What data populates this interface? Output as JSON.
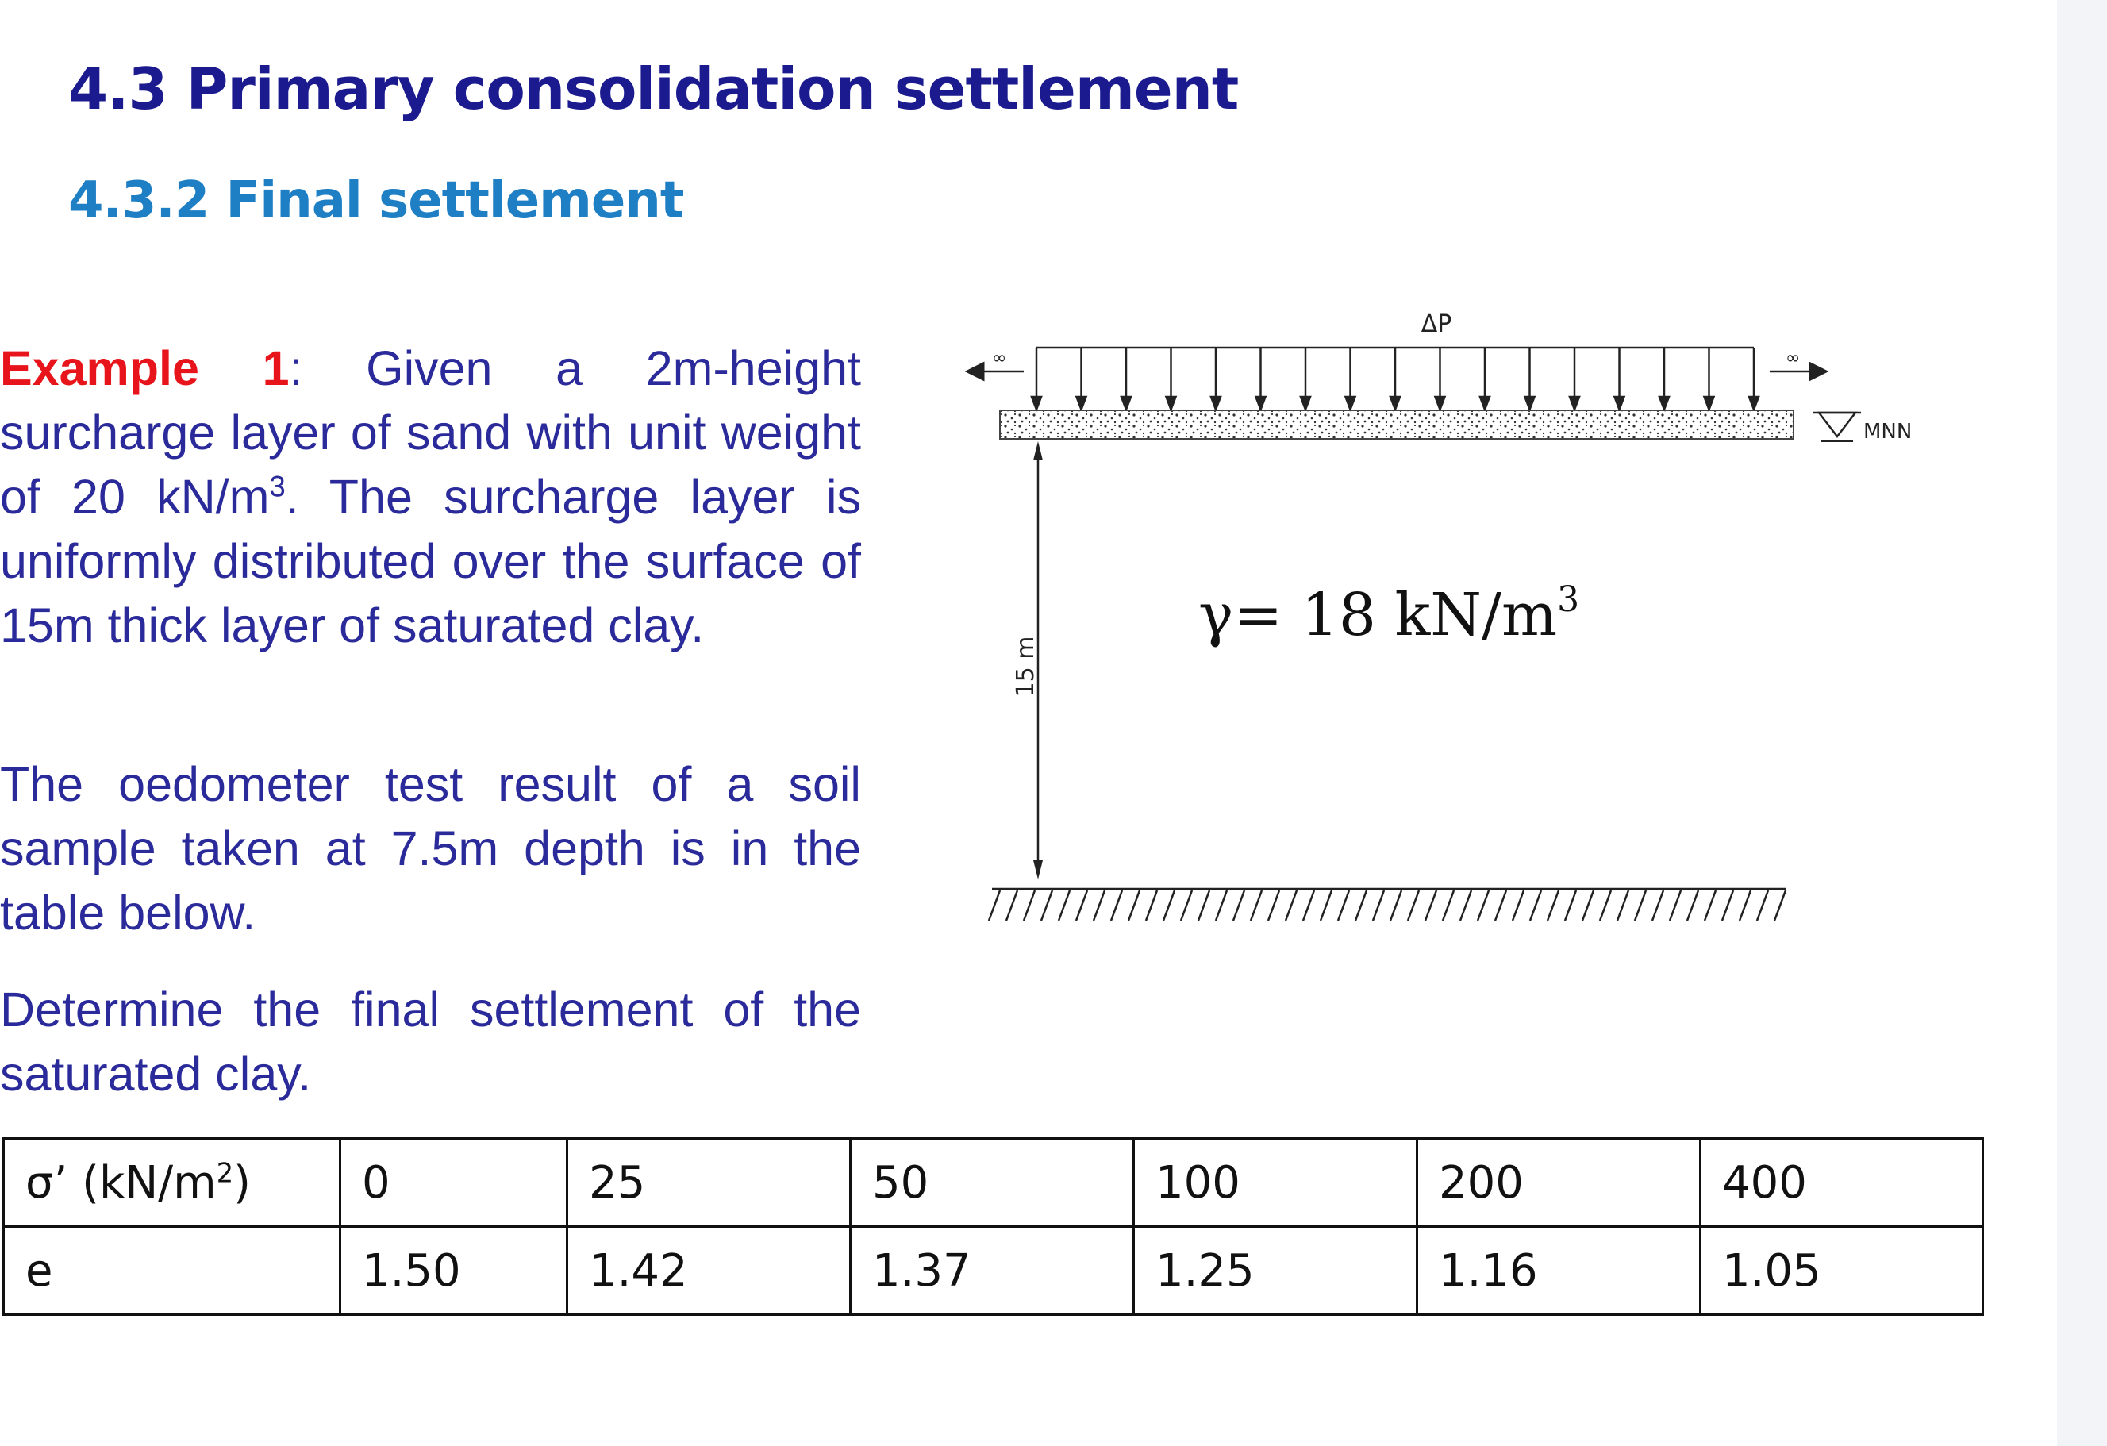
{
  "title": "4.3 Primary consolidation settlement",
  "subtitle": "4.3.2 Final settlement",
  "example": {
    "label": "Example 1",
    "colon": ":",
    "p1_text_a": " Given a 2m-height surcharge layer of sand with unit weight of 20 kN/m",
    "p1_sup": "3",
    "p1_text_b": ". The surcharge layer is uniformly distributed over the surface of 15m thick layer of saturated clay.",
    "p2": "The oedometer test result of a soil sample taken at 7.5m depth is in the table below.",
    "p3": "Determine the final settlement of the saturated clay."
  },
  "diagram": {
    "load_symbol": "ΔP",
    "left_arrow_label": "∞",
    "right_arrow_label": "∞",
    "water_level_label": "MNN",
    "thickness_label": "15 m",
    "gamma_prefix": "γ= 18 kN/m",
    "gamma_sup": "3"
  },
  "table": {
    "row1_header_main": "σ’ (kN/m",
    "row1_header_sup": "2",
    "row1_header_end": ")",
    "row1_values": [
      "0",
      "25",
      "50",
      "100",
      "200",
      "400"
    ],
    "row2_header": "e",
    "row2_values": [
      "1.50",
      "1.42",
      "1.37",
      "1.25",
      "1.16",
      "1.05"
    ]
  }
}
